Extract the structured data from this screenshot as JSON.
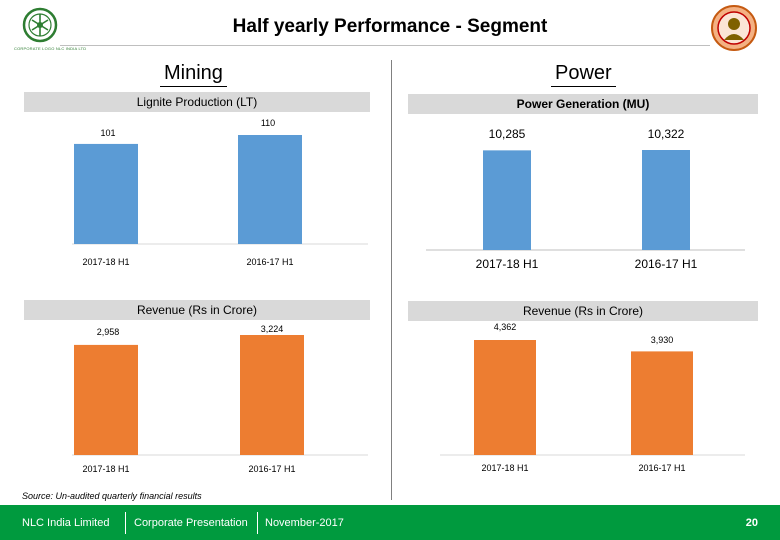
{
  "header": {
    "title": "Half yearly Performance - Segment",
    "logo_caption": "CORPORATE LOGO NLC INDIA LTD"
  },
  "sections": {
    "mining": "Mining",
    "power": "Power"
  },
  "colors": {
    "blue": "#5b9bd5",
    "orange": "#ed7d31",
    "footer_green": "#009a3e",
    "title_box": "#d9d9d9"
  },
  "chart_data": [
    {
      "id": "lignite-production",
      "type": "bar",
      "title": "Lignite Production (LT)",
      "categories": [
        "2017-18 H1",
        "2016-17 H1"
      ],
      "values": [
        101,
        110
      ],
      "value_labels": [
        "101",
        "110"
      ],
      "ylim": [
        0,
        110
      ],
      "color": "#5b9bd5"
    },
    {
      "id": "power-generation",
      "type": "bar",
      "title": "Power Generation (MU)",
      "categories": [
        "2017-18 H1",
        "2016-17 H1"
      ],
      "values": [
        10285,
        10322
      ],
      "value_labels": [
        "10,285",
        "10,322"
      ],
      "ylim": [
        0,
        10322
      ],
      "color": "#5b9bd5"
    },
    {
      "id": "mining-revenue",
      "type": "bar",
      "title": "Revenue (Rs in Crore)",
      "categories": [
        "2017-18 H1",
        "2016-17 H1"
      ],
      "values": [
        2958,
        3224
      ],
      "value_labels": [
        "2,958",
        "3,224"
      ],
      "ylim": [
        0,
        3224
      ],
      "color": "#ed7d31"
    },
    {
      "id": "power-revenue",
      "type": "bar",
      "title": "Revenue (Rs in Crore)",
      "categories": [
        "2017-18 H1",
        "2016-17 H1"
      ],
      "values": [
        4362,
        3930
      ],
      "value_labels": [
        "4,362",
        "3,930"
      ],
      "ylim": [
        0,
        4362
      ],
      "color": "#ed7d31"
    }
  ],
  "source_note": "Source: Un-audited quarterly financial results",
  "footer": {
    "company": "NLC India Limited",
    "presentation": "Corporate Presentation",
    "date": "November-2017",
    "page": "20"
  }
}
